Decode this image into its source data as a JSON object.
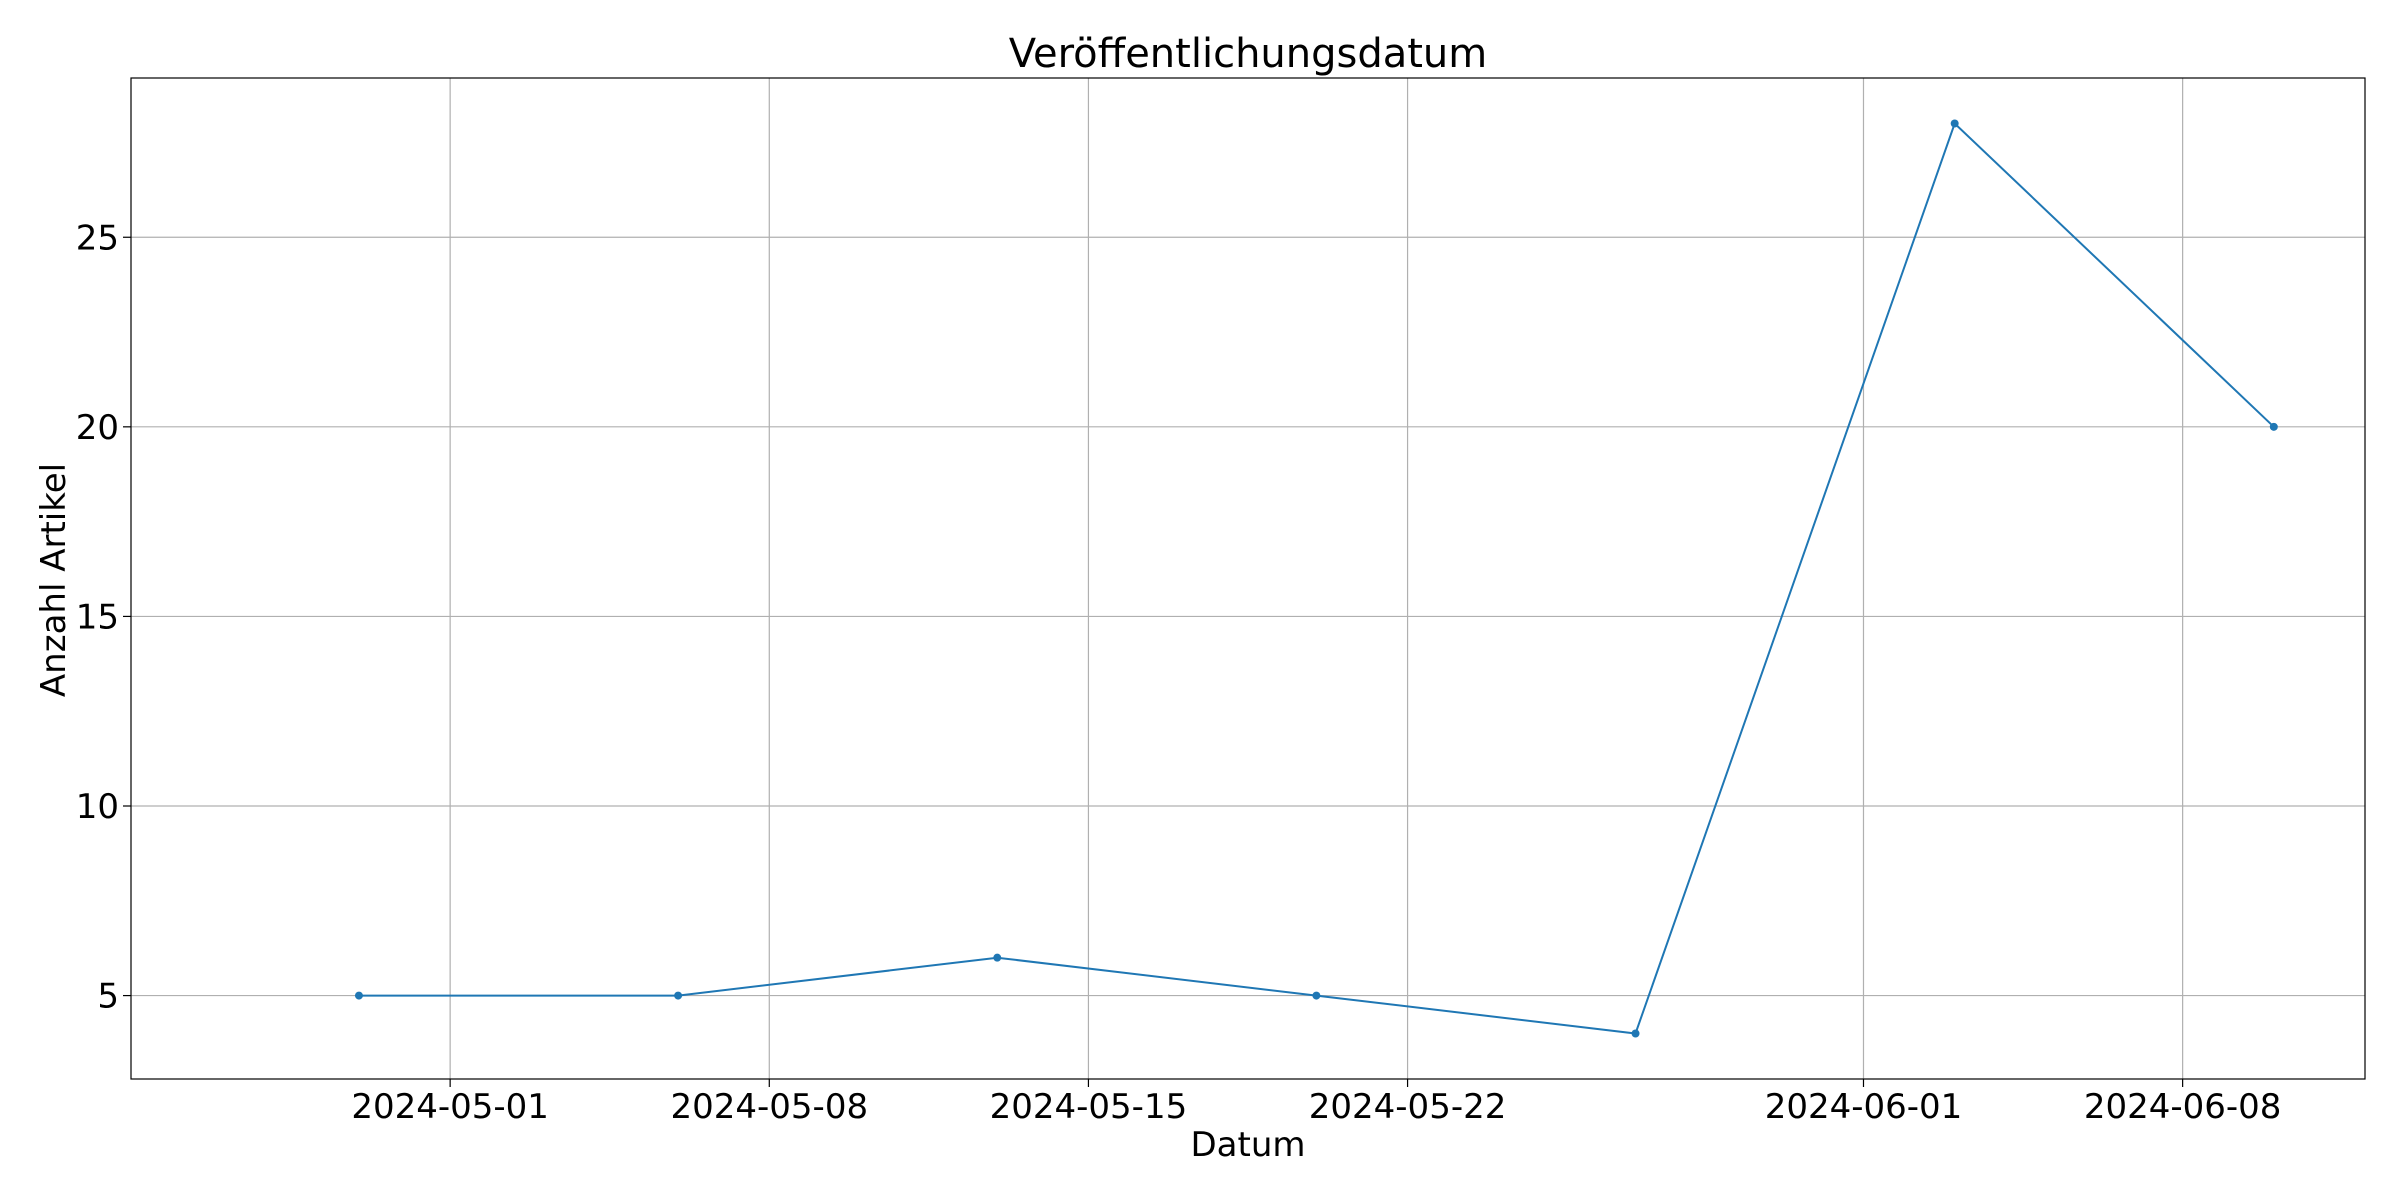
{
  "chart_data": {
    "type": "line",
    "title": "Veröffentlichungsdatum",
    "xlabel": "Datum",
    "ylabel": "Anzahl Artikel",
    "x_type": "date",
    "xlim": [
      "2024-04-24",
      "2024-06-12"
    ],
    "ylim": [
      2.8,
      29.2
    ],
    "x_ticks": [
      "2024-05-01",
      "2024-05-08",
      "2024-05-15",
      "2024-05-22",
      "2024-06-01",
      "2024-06-08"
    ],
    "y_ticks": [
      5,
      10,
      15,
      20,
      25
    ],
    "grid": true,
    "legend": "none",
    "series": [
      {
        "color": "#1f77b4",
        "x": [
          "2024-04-29",
          "2024-05-06",
          "2024-05-13",
          "2024-05-20",
          "2024-05-27",
          "2024-06-03",
          "2024-06-10"
        ],
        "y": [
          5,
          5,
          6,
          5,
          4,
          28,
          20
        ]
      }
    ]
  }
}
